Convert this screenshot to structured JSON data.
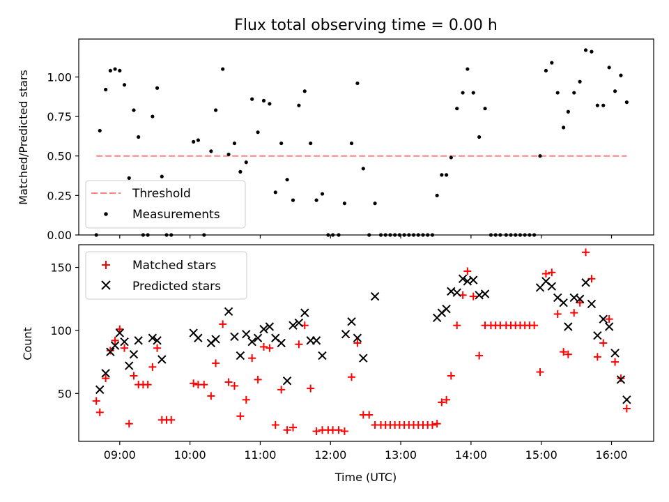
{
  "chart_data": [
    {
      "type": "scatter",
      "title": "Flux total observing time = 0.00 h",
      "ylabel": "Matched/Predicted stars",
      "xlabel": "",
      "xlim": [
        "08:25",
        "16:36"
      ],
      "ylim": [
        0,
        1.24
      ],
      "x_ticks": [
        "09:00",
        "10:00",
        "11:00",
        "12:00",
        "13:00",
        "14:00",
        "15:00",
        "16:00"
      ],
      "y_ticks": [
        "0.00",
        "0.25",
        "0.50",
        "0.75",
        "1.00"
      ],
      "legend": {
        "position": "lower-left",
        "entries": [
          "Threshold",
          "Measurements"
        ]
      },
      "threshold": {
        "name": "Threshold",
        "value": 0.5,
        "x_range": [
          "08:40",
          "16:13"
        ],
        "color": "#ff8080",
        "style": "dashed"
      },
      "series": [
        {
          "name": "Measurements",
          "color": "#000000",
          "points": [
            [
              "08:40",
              0.0
            ],
            [
              "08:43",
              0.66
            ],
            [
              "08:48",
              0.92
            ],
            [
              "08:52",
              1.04
            ],
            [
              "08:56",
              1.05
            ],
            [
              "09:00",
              1.04
            ],
            [
              "09:04",
              0.95
            ],
            [
              "09:08",
              0.36
            ],
            [
              "09:12",
              0.79
            ],
            [
              "09:16",
              0.62
            ],
            [
              "09:20",
              0.0
            ],
            [
              "09:24",
              0.0
            ],
            [
              "09:28",
              0.75
            ],
            [
              "09:32",
              0.93
            ],
            [
              "09:36",
              0.37
            ],
            [
              "09:40",
              0.0
            ],
            [
              "09:44",
              0.0
            ],
            [
              "10:03",
              0.59
            ],
            [
              "10:07",
              0.6
            ],
            [
              "10:12",
              0.0
            ],
            [
              "10:18",
              0.53
            ],
            [
              "10:22",
              0.79
            ],
            [
              "10:28",
              1.05
            ],
            [
              "10:33",
              0.51
            ],
            [
              "10:38",
              0.58
            ],
            [
              "10:43",
              0.4
            ],
            [
              "10:48",
              0.46
            ],
            [
              "10:53",
              0.86
            ],
            [
              "10:58",
              0.65
            ],
            [
              "11:03",
              0.85
            ],
            [
              "11:08",
              0.83
            ],
            [
              "11:13",
              0.27
            ],
            [
              "11:18",
              0.58
            ],
            [
              "11:23",
              0.35
            ],
            [
              "11:28",
              0.22
            ],
            [
              "11:33",
              0.82
            ],
            [
              "11:38",
              0.91
            ],
            [
              "11:43",
              0.58
            ],
            [
              "11:48",
              0.22
            ],
            [
              "11:53",
              0.26
            ],
            [
              "11:58",
              0.0
            ],
            [
              "12:02",
              0.0
            ],
            [
              "12:07",
              0.0
            ],
            [
              "12:12",
              0.2
            ],
            [
              "12:18",
              0.58
            ],
            [
              "12:23",
              0.96
            ],
            [
              "12:28",
              0.42
            ],
            [
              "12:33",
              0.0
            ],
            [
              "12:38",
              0.2
            ],
            [
              "12:43",
              0.0
            ],
            [
              "12:47",
              0.0
            ],
            [
              "12:51",
              0.0
            ],
            [
              "12:55",
              0.0
            ],
            [
              "12:59",
              0.0
            ],
            [
              "13:03",
              0.0
            ],
            [
              "13:07",
              0.0
            ],
            [
              "13:11",
              0.0
            ],
            [
              "13:15",
              0.0
            ],
            [
              "13:19",
              0.0
            ],
            [
              "13:23",
              0.0
            ],
            [
              "13:27",
              0.0
            ],
            [
              "13:31",
              0.25
            ],
            [
              "13:35",
              0.38
            ],
            [
              "13:39",
              0.38
            ],
            [
              "13:43",
              0.49
            ],
            [
              "13:48",
              0.8
            ],
            [
              "13:53",
              0.9
            ],
            [
              "13:57",
              1.05
            ],
            [
              "14:02",
              0.9
            ],
            [
              "14:07",
              0.62
            ],
            [
              "14:12",
              0.8
            ],
            [
              "14:17",
              0.0
            ],
            [
              "14:21",
              0.0
            ],
            [
              "14:25",
              0.0
            ],
            [
              "14:30",
              0.0
            ],
            [
              "14:34",
              0.0
            ],
            [
              "14:38",
              0.0
            ],
            [
              "14:42",
              0.0
            ],
            [
              "14:46",
              0.0
            ],
            [
              "14:50",
              0.0
            ],
            [
              "14:54",
              0.0
            ],
            [
              "14:59",
              0.5
            ],
            [
              "15:04",
              1.04
            ],
            [
              "15:09",
              1.09
            ],
            [
              "15:14",
              0.9
            ],
            [
              "15:19",
              0.68
            ],
            [
              "15:23",
              0.78
            ],
            [
              "15:28",
              0.9
            ],
            [
              "15:33",
              0.97
            ],
            [
              "15:38",
              1.17
            ],
            [
              "15:43",
              1.16
            ],
            [
              "15:48",
              0.82
            ],
            [
              "15:53",
              0.82
            ],
            [
              "15:58",
              1.06
            ],
            [
              "16:03",
              0.91
            ],
            [
              "16:08",
              1.01
            ],
            [
              "16:13",
              0.84
            ]
          ]
        }
      ]
    },
    {
      "type": "scatter",
      "title": "",
      "ylabel": "Count",
      "xlabel": "Time (UTC)",
      "xlim": [
        "08:25",
        "16:36"
      ],
      "ylim": [
        12,
        168
      ],
      "x_ticks": [
        "09:00",
        "10:00",
        "11:00",
        "12:00",
        "13:00",
        "14:00",
        "15:00",
        "16:00"
      ],
      "y_ticks": [
        "50",
        "100",
        "150"
      ],
      "legend": {
        "position": "top-left",
        "entries": [
          "Matched stars",
          "Predicted stars"
        ]
      },
      "series": [
        {
          "name": "Matched stars",
          "marker": "plus",
          "color": "#ff0000",
          "points": [
            [
              "08:40",
              44
            ],
            [
              "08:43",
              35
            ],
            [
              "08:48",
              62
            ],
            [
              "08:52",
              84
            ],
            [
              "08:56",
              92
            ],
            [
              "09:00",
              101
            ],
            [
              "09:04",
              86
            ],
            [
              "09:08",
              26
            ],
            [
              "09:12",
              64
            ],
            [
              "09:16",
              57
            ],
            [
              "09:20",
              57
            ],
            [
              "09:24",
              57
            ],
            [
              "09:28",
              71
            ],
            [
              "09:32",
              86
            ],
            [
              "09:36",
              29
            ],
            [
              "09:40",
              29
            ],
            [
              "09:44",
              29
            ],
            [
              "10:03",
              58
            ],
            [
              "10:07",
              57
            ],
            [
              "10:12",
              57
            ],
            [
              "10:18",
              48
            ],
            [
              "10:22",
              74
            ],
            [
              "10:28",
              105
            ],
            [
              "10:33",
              59
            ],
            [
              "10:38",
              56
            ],
            [
              "10:43",
              32
            ],
            [
              "10:48",
              45
            ],
            [
              "10:53",
              78
            ],
            [
              "10:58",
              61
            ],
            [
              "11:03",
              87
            ],
            [
              "11:08",
              86
            ],
            [
              "11:13",
              25
            ],
            [
              "11:18",
              53
            ],
            [
              "11:23",
              21
            ],
            [
              "11:28",
              23
            ],
            [
              "11:33",
              89
            ],
            [
              "11:38",
              104
            ],
            [
              "11:43",
              54
            ],
            [
              "11:48",
              20
            ],
            [
              "11:53",
              21
            ],
            [
              "11:58",
              21
            ],
            [
              "12:02",
              21
            ],
            [
              "12:07",
              21
            ],
            [
              "12:12",
              20
            ],
            [
              "12:18",
              63
            ],
            [
              "12:23",
              90
            ],
            [
              "12:28",
              33
            ],
            [
              "12:33",
              33
            ],
            [
              "12:38",
              25
            ],
            [
              "12:43",
              25
            ],
            [
              "12:47",
              25
            ],
            [
              "12:51",
              25
            ],
            [
              "12:55",
              25
            ],
            [
              "12:59",
              25
            ],
            [
              "13:03",
              25
            ],
            [
              "13:07",
              25
            ],
            [
              "13:11",
              25
            ],
            [
              "13:15",
              25
            ],
            [
              "13:19",
              25
            ],
            [
              "13:23",
              25
            ],
            [
              "13:27",
              25
            ],
            [
              "13:31",
              26
            ],
            [
              "13:35",
              43
            ],
            [
              "13:39",
              45
            ],
            [
              "13:43",
              64
            ],
            [
              "13:48",
              104
            ],
            [
              "13:53",
              128
            ],
            [
              "13:57",
              147
            ],
            [
              "14:02",
              127
            ],
            [
              "14:07",
              80
            ],
            [
              "14:12",
              104
            ],
            [
              "14:17",
              104
            ],
            [
              "14:21",
              104
            ],
            [
              "14:25",
              104
            ],
            [
              "14:30",
              104
            ],
            [
              "14:34",
              104
            ],
            [
              "14:38",
              104
            ],
            [
              "14:42",
              104
            ],
            [
              "14:46",
              104
            ],
            [
              "14:50",
              104
            ],
            [
              "14:54",
              104
            ],
            [
              "14:59",
              67
            ],
            [
              "15:04",
              145
            ],
            [
              "15:09",
              146
            ],
            [
              "15:14",
              113
            ],
            [
              "15:19",
              83
            ],
            [
              "15:23",
              81
            ],
            [
              "15:28",
              114
            ],
            [
              "15:33",
              122
            ],
            [
              "15:38",
              162
            ],
            [
              "15:43",
              141
            ],
            [
              "15:48",
              79
            ],
            [
              "15:53",
              90
            ],
            [
              "15:58",
              109
            ],
            [
              "16:03",
              75
            ],
            [
              "16:08",
              62
            ],
            [
              "16:13",
              38
            ]
          ]
        },
        {
          "name": "Predicted stars",
          "marker": "cross",
          "color": "#000000",
          "points": [
            [
              "08:43",
              53
            ],
            [
              "08:48",
              66
            ],
            [
              "08:52",
              83
            ],
            [
              "08:56",
              88
            ],
            [
              "09:00",
              98
            ],
            [
              "09:04",
              91
            ],
            [
              "09:08",
              72
            ],
            [
              "09:12",
              81
            ],
            [
              "09:16",
              92
            ],
            [
              "09:28",
              94
            ],
            [
              "09:32",
              92
            ],
            [
              "09:36",
              77
            ],
            [
              "10:03",
              98
            ],
            [
              "10:07",
              94
            ],
            [
              "10:18",
              90
            ],
            [
              "10:22",
              93
            ],
            [
              "10:33",
              115
            ],
            [
              "10:38",
              95
            ],
            [
              "10:43",
              80
            ],
            [
              "10:48",
              97
            ],
            [
              "10:53",
              91
            ],
            [
              "10:58",
              94
            ],
            [
              "11:03",
              101
            ],
            [
              "11:08",
              103
            ],
            [
              "11:13",
              94
            ],
            [
              "11:18",
              90
            ],
            [
              "11:23",
              60
            ],
            [
              "11:28",
              104
            ],
            [
              "11:33",
              106
            ],
            [
              "11:38",
              114
            ],
            [
              "11:43",
              92
            ],
            [
              "11:48",
              92
            ],
            [
              "11:53",
              80
            ],
            [
              "12:13",
              97
            ],
            [
              "12:18",
              107
            ],
            [
              "12:23",
              94
            ],
            [
              "12:28",
              78
            ],
            [
              "12:38",
              127
            ],
            [
              "13:31",
              110
            ],
            [
              "13:35",
              114
            ],
            [
              "13:39",
              117
            ],
            [
              "13:43",
              131
            ],
            [
              "13:48",
              130
            ],
            [
              "13:53",
              141
            ],
            [
              "13:57",
              139
            ],
            [
              "14:02",
              140
            ],
            [
              "14:07",
              128
            ],
            [
              "14:12",
              129
            ],
            [
              "14:59",
              134
            ],
            [
              "15:04",
              139
            ],
            [
              "15:09",
              135
            ],
            [
              "15:14",
              126
            ],
            [
              "15:19",
              122
            ],
            [
              "15:23",
              103
            ],
            [
              "15:28",
              126
            ],
            [
              "15:33",
              125
            ],
            [
              "15:38",
              138
            ],
            [
              "15:43",
              121
            ],
            [
              "15:48",
              96
            ],
            [
              "15:53",
              109
            ],
            [
              "15:58",
              103
            ],
            [
              "16:03",
              82
            ],
            [
              "16:08",
              61
            ],
            [
              "16:13",
              45
            ]
          ]
        }
      ]
    }
  ]
}
